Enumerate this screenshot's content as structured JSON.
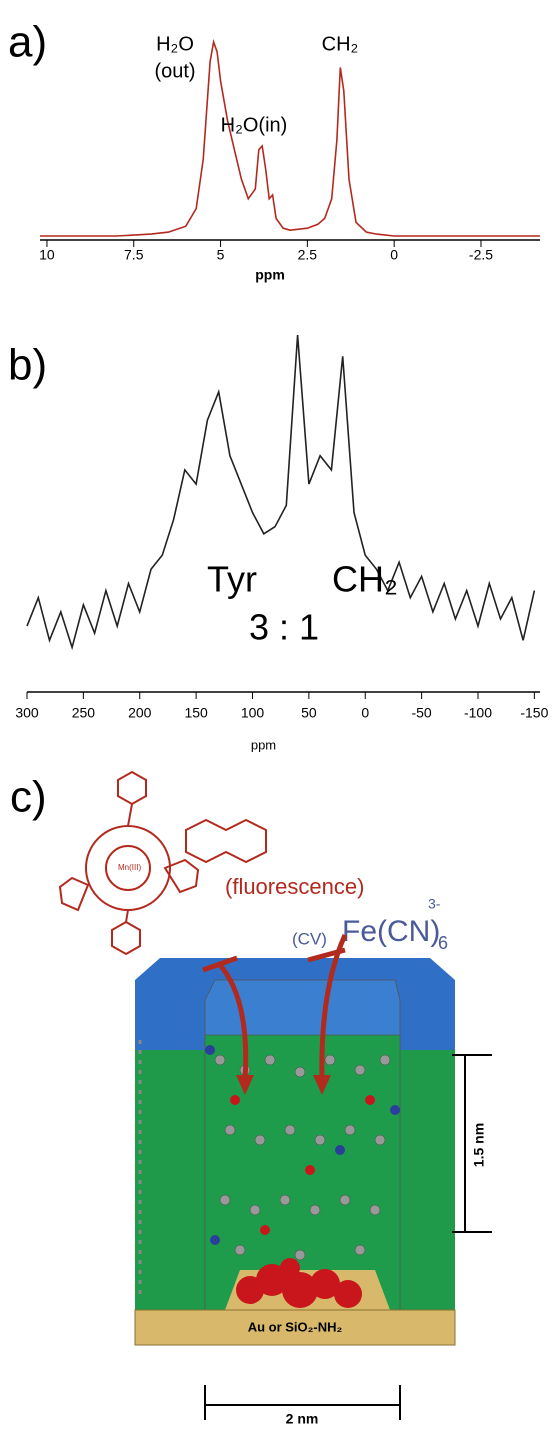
{
  "chart_data": [
    {
      "type": "line",
      "panel_label": "a)",
      "x_label": "ppm",
      "color": "#b22a1e",
      "annotations": [
        "H₂O",
        "(out)",
        "H₂O(in)",
        "CH₂"
      ],
      "x": [
        10.2,
        9,
        8,
        7,
        6.5,
        6,
        5.7,
        5.5,
        5.3,
        5.2,
        5.1,
        5,
        4.8,
        4.6,
        4.4,
        4.2,
        4,
        3.9,
        3.8,
        3.7,
        3.6,
        3.5,
        3.4,
        3.2,
        3,
        2.5,
        2.2,
        2,
        1.8,
        1.65,
        1.55,
        1.45,
        1.3,
        1.1,
        0.8,
        0.5,
        0,
        -2,
        -4.2
      ],
      "values": [
        1,
        1,
        1,
        2,
        3,
        6,
        15,
        40,
        90,
        100,
        95,
        80,
        60,
        45,
        30,
        20,
        25,
        45,
        47,
        35,
        20,
        22,
        10,
        5,
        4,
        5,
        7,
        10,
        20,
        50,
        87,
        75,
        30,
        8,
        3,
        2,
        1,
        1,
        1
      ],
      "xlim": [
        10.2,
        -4.2
      ],
      "ylim": [
        0,
        100
      ],
      "xticks": [
        10,
        7.5,
        5,
        2.5,
        0,
        -2.5
      ]
    },
    {
      "type": "line",
      "panel_label": "b)",
      "x_label": "ppm",
      "color": "#222222",
      "annotations": [
        "Tyr",
        "CH₂",
        "3 : 1"
      ],
      "x": [
        300,
        290,
        280,
        270,
        260,
        250,
        240,
        230,
        220,
        210,
        200,
        190,
        180,
        170,
        160,
        150,
        140,
        130,
        120,
        110,
        100,
        90,
        80,
        70,
        60,
        50,
        40,
        30,
        20,
        10,
        0,
        -10,
        -20,
        -30,
        -40,
        -50,
        -60,
        -70,
        -80,
        -90,
        -100,
        -110,
        -120,
        -130,
        -140,
        -150
      ],
      "values": [
        18,
        26,
        14,
        22,
        12,
        24,
        16,
        28,
        18,
        30,
        22,
        34,
        38,
        48,
        62,
        58,
        76,
        84,
        66,
        58,
        50,
        44,
        46,
        52,
        100,
        58,
        66,
        62,
        94,
        50,
        38,
        34,
        28,
        36,
        26,
        32,
        22,
        30,
        20,
        28,
        18,
        30,
        20,
        26,
        14,
        28
      ],
      "xlim": [
        300,
        -155
      ],
      "ylim": [
        0,
        100
      ],
      "xticks": [
        300,
        250,
        200,
        150,
        100,
        50,
        0,
        -50,
        -100,
        -150
      ]
    }
  ],
  "diagram": {
    "panel_label": "c)",
    "catalyst": "Mn(III)",
    "method_1": "(fluorescence)",
    "method_2": "(CV)",
    "probe": "Fe(CN)",
    "probe_subscript": "6",
    "probe_charge": "3-",
    "height_label": "1.5 nm",
    "width_label": "2 nm",
    "substrate": "Au or SiO₂-NH₂"
  }
}
